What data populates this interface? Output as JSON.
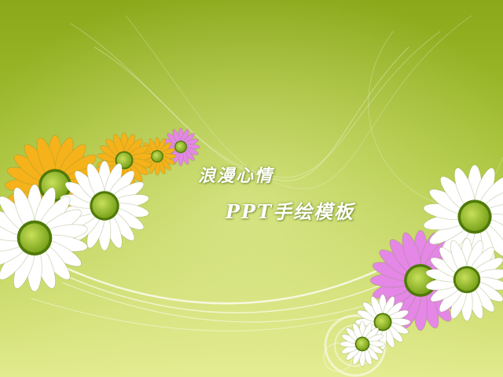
{
  "slide": {
    "title_line_1": "浪漫心情",
    "title_line_2": "PPT手绘模板"
  },
  "colors": {
    "background_top": "#8fad1c",
    "background_bottom": "#dfe98a",
    "daisy_white": "#ffffff",
    "daisy_yellow": "#f5b21a",
    "daisy_pink": "#e487e6",
    "daisy_center": "#9cc22a"
  },
  "decorations": [
    "white-daisy",
    "yellow-daisy",
    "pink-daisy",
    "swirl-ribbon",
    "circle-ring"
  ]
}
